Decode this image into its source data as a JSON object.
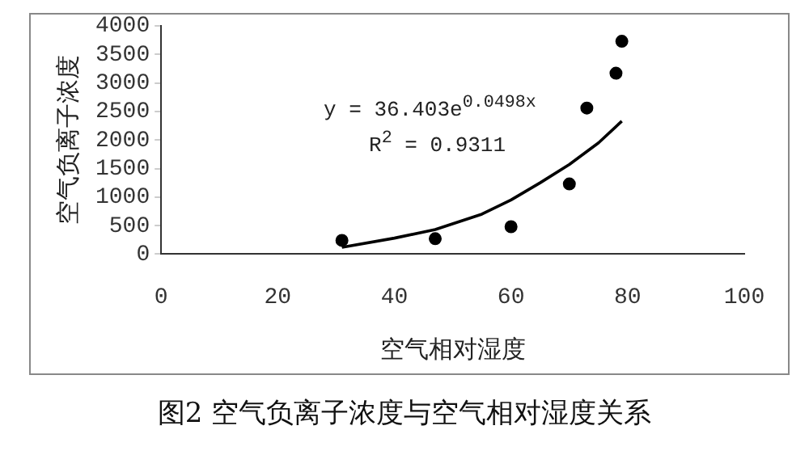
{
  "chart_data": {
    "type": "scatter",
    "title": "图2  空气负离子浓度与空气相对湿度关系",
    "xlabel": "空气相对湿度",
    "ylabel": "空气负离子浓度",
    "xlim": [
      0,
      100
    ],
    "xticks": [
      0,
      20,
      40,
      60,
      80,
      100
    ],
    "ylim": [
      0,
      4000
    ],
    "yticks": [
      0,
      500,
      1000,
      1500,
      2000,
      2500,
      3000,
      3500,
      4000
    ],
    "grid": false,
    "legend": false,
    "marker": "circle",
    "annotations": [
      "y = 36.403e$^{0.0498x}$",
      "R$^{2}$ = 0.9311"
    ],
    "series": [
      {
        "type": "scatter",
        "color": "#000000",
        "x": [
          31,
          47,
          60,
          70,
          73,
          78,
          79
        ],
        "values": [
          240,
          270,
          480,
          1230,
          2560,
          3170,
          3730
        ]
      },
      {
        "type": "line",
        "color": "#000000",
        "marker": "none",
        "line_style": "solid",
        "x": [
          31,
          40,
          47,
          55,
          60,
          65,
          70,
          75,
          79
        ],
        "values": [
          120,
          280,
          430,
          700,
          950,
          1250,
          1570,
          1950,
          2330
        ]
      }
    ]
  }
}
